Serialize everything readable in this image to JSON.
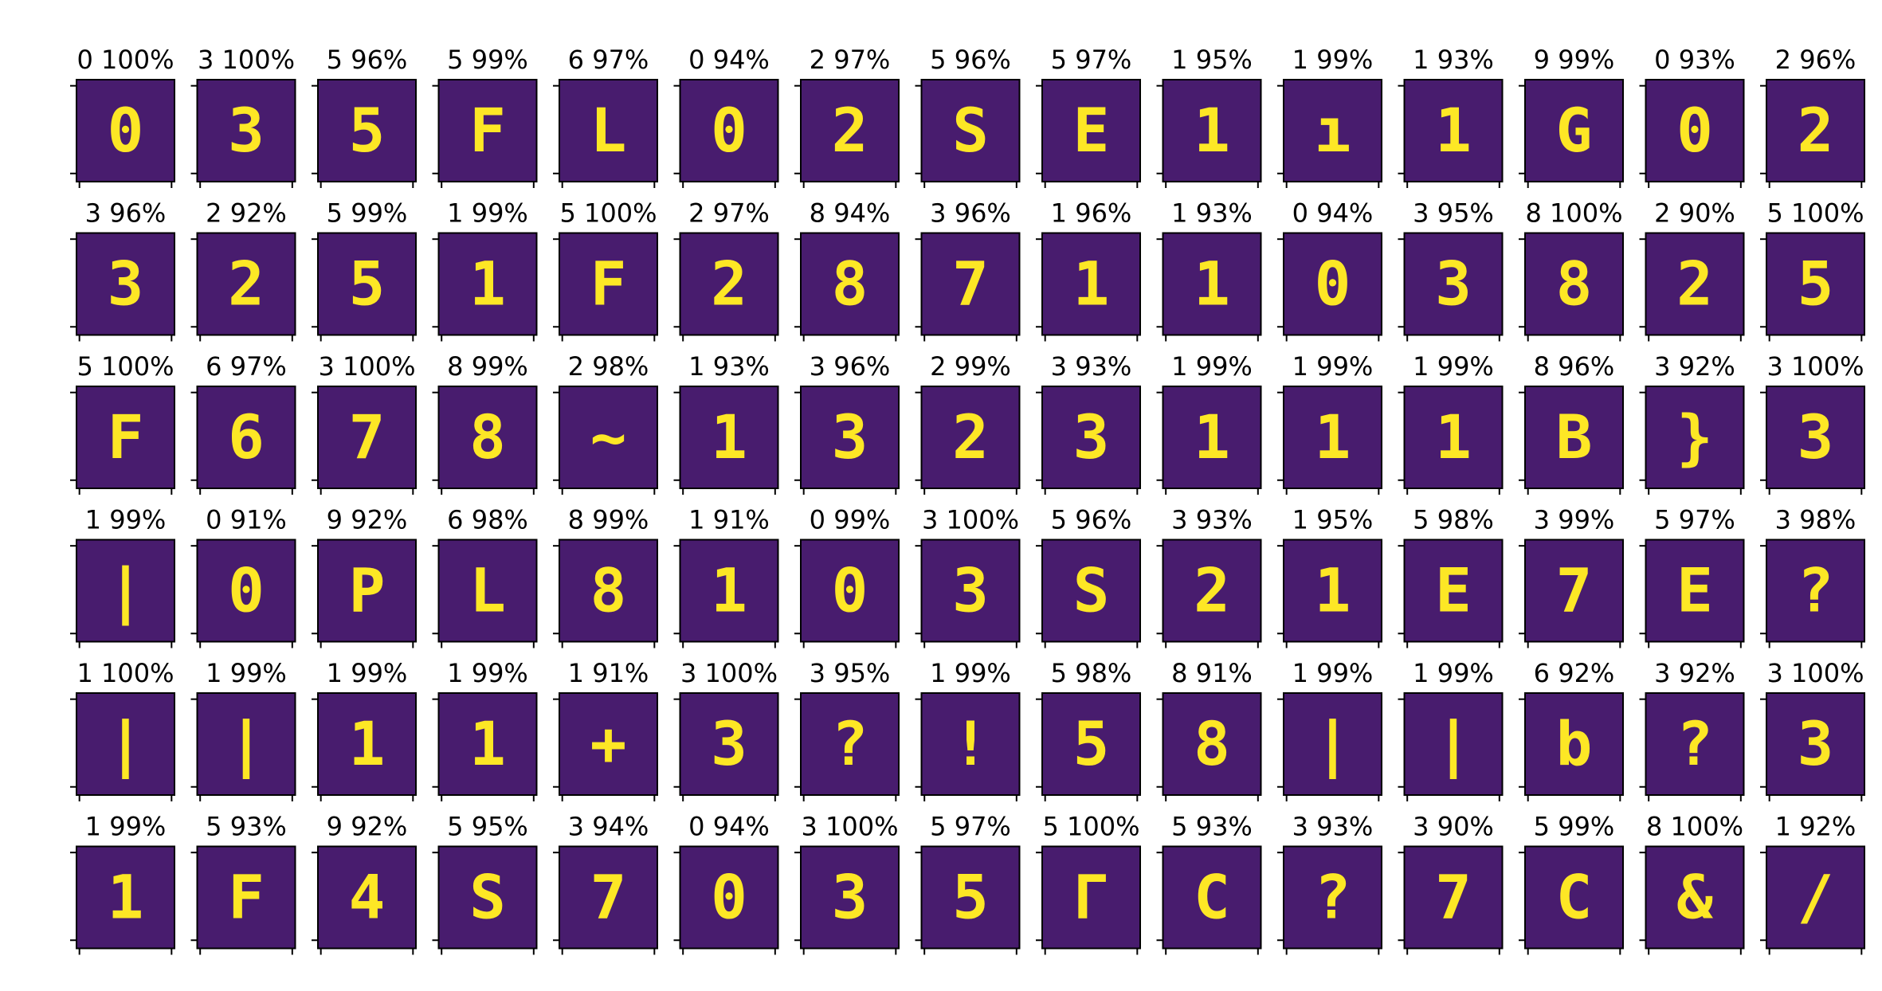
{
  "colors": {
    "panel_bg": "#481c6e",
    "digit_fg": "#fde725",
    "frame": "#000000"
  },
  "chart_data": {
    "type": "image-grid",
    "rows": 6,
    "cols": 15,
    "grid": false,
    "cells": [
      {
        "label": "0 100%",
        "glyph": "0"
      },
      {
        "label": "3 100%",
        "glyph": "3"
      },
      {
        "label": "5 96%",
        "glyph": "5"
      },
      {
        "label": "5 99%",
        "glyph": "F"
      },
      {
        "label": "6 97%",
        "glyph": "L"
      },
      {
        "label": "0 94%",
        "glyph": "0"
      },
      {
        "label": "2 97%",
        "glyph": "2"
      },
      {
        "label": "5 96%",
        "glyph": "S"
      },
      {
        "label": "5 97%",
        "glyph": "E"
      },
      {
        "label": "1 95%",
        "glyph": "1"
      },
      {
        "label": "1 99%",
        "glyph": "ı"
      },
      {
        "label": "1 93%",
        "glyph": "1"
      },
      {
        "label": "9 99%",
        "glyph": "G"
      },
      {
        "label": "0 93%",
        "glyph": "0"
      },
      {
        "label": "2 96%",
        "glyph": "2"
      },
      {
        "label": "3 96%",
        "glyph": "3"
      },
      {
        "label": "2 92%",
        "glyph": "2"
      },
      {
        "label": "5 99%",
        "glyph": "5"
      },
      {
        "label": "1 99%",
        "glyph": "1"
      },
      {
        "label": "5 100%",
        "glyph": "F"
      },
      {
        "label": "2 97%",
        "glyph": "2"
      },
      {
        "label": "8 94%",
        "glyph": "8"
      },
      {
        "label": "3 96%",
        "glyph": "7"
      },
      {
        "label": "1 96%",
        "glyph": "1"
      },
      {
        "label": "1 93%",
        "glyph": "1"
      },
      {
        "label": "0 94%",
        "glyph": "0"
      },
      {
        "label": "3 95%",
        "glyph": "3"
      },
      {
        "label": "8 100%",
        "glyph": "8"
      },
      {
        "label": "2 90%",
        "glyph": "2"
      },
      {
        "label": "5 100%",
        "glyph": "5"
      },
      {
        "label": "5 100%",
        "glyph": "F"
      },
      {
        "label": "6 97%",
        "glyph": "6"
      },
      {
        "label": "3 100%",
        "glyph": "7"
      },
      {
        "label": "8 99%",
        "glyph": "8"
      },
      {
        "label": "2 98%",
        "glyph": "~"
      },
      {
        "label": "1 93%",
        "glyph": "1"
      },
      {
        "label": "3 96%",
        "glyph": "3"
      },
      {
        "label": "2 99%",
        "glyph": "2"
      },
      {
        "label": "3 93%",
        "glyph": "3"
      },
      {
        "label": "1 99%",
        "glyph": "1"
      },
      {
        "label": "1 99%",
        "glyph": "1"
      },
      {
        "label": "1 99%",
        "glyph": "1"
      },
      {
        "label": "8 96%",
        "glyph": "B"
      },
      {
        "label": "3 92%",
        "glyph": "}"
      },
      {
        "label": "3 100%",
        "glyph": "3"
      },
      {
        "label": "1 99%",
        "glyph": "|"
      },
      {
        "label": "0 91%",
        "glyph": "0"
      },
      {
        "label": "9 92%",
        "glyph": "P"
      },
      {
        "label": "6 98%",
        "glyph": "L"
      },
      {
        "label": "8 99%",
        "glyph": "8"
      },
      {
        "label": "1 91%",
        "glyph": "1"
      },
      {
        "label": "0 99%",
        "glyph": "0"
      },
      {
        "label": "3 100%",
        "glyph": "3"
      },
      {
        "label": "5 96%",
        "glyph": "S"
      },
      {
        "label": "3 93%",
        "glyph": "2"
      },
      {
        "label": "1 95%",
        "glyph": "1"
      },
      {
        "label": "5 98%",
        "glyph": "E"
      },
      {
        "label": "3 99%",
        "glyph": "7"
      },
      {
        "label": "5 97%",
        "glyph": "E"
      },
      {
        "label": "3 98%",
        "glyph": "?"
      },
      {
        "label": "1 100%",
        "glyph": "|"
      },
      {
        "label": "1 99%",
        "glyph": "|"
      },
      {
        "label": "1 99%",
        "glyph": "1"
      },
      {
        "label": "1 99%",
        "glyph": "1"
      },
      {
        "label": "1 91%",
        "glyph": "+"
      },
      {
        "label": "3 100%",
        "glyph": "3"
      },
      {
        "label": "3 95%",
        "glyph": "?"
      },
      {
        "label": "1 99%",
        "glyph": "!"
      },
      {
        "label": "5 98%",
        "glyph": "5"
      },
      {
        "label": "8 91%",
        "glyph": "8"
      },
      {
        "label": "1 99%",
        "glyph": "|"
      },
      {
        "label": "1 99%",
        "glyph": "|"
      },
      {
        "label": "6 92%",
        "glyph": "b"
      },
      {
        "label": "3 92%",
        "glyph": "?"
      },
      {
        "label": "3 100%",
        "glyph": "3"
      },
      {
        "label": "1 99%",
        "glyph": "1"
      },
      {
        "label": "5 93%",
        "glyph": "F"
      },
      {
        "label": "9 92%",
        "glyph": "4"
      },
      {
        "label": "5 95%",
        "glyph": "S"
      },
      {
        "label": "3 94%",
        "glyph": "7"
      },
      {
        "label": "0 94%",
        "glyph": "0"
      },
      {
        "label": "3 100%",
        "glyph": "3"
      },
      {
        "label": "5 97%",
        "glyph": "5"
      },
      {
        "label": "5 100%",
        "glyph": "Γ"
      },
      {
        "label": "5 93%",
        "glyph": "C"
      },
      {
        "label": "3 93%",
        "glyph": "?"
      },
      {
        "label": "3 90%",
        "glyph": "7"
      },
      {
        "label": "5 99%",
        "glyph": "C"
      },
      {
        "label": "8 100%",
        "glyph": "&"
      },
      {
        "label": "1 92%",
        "glyph": "/"
      }
    ]
  }
}
